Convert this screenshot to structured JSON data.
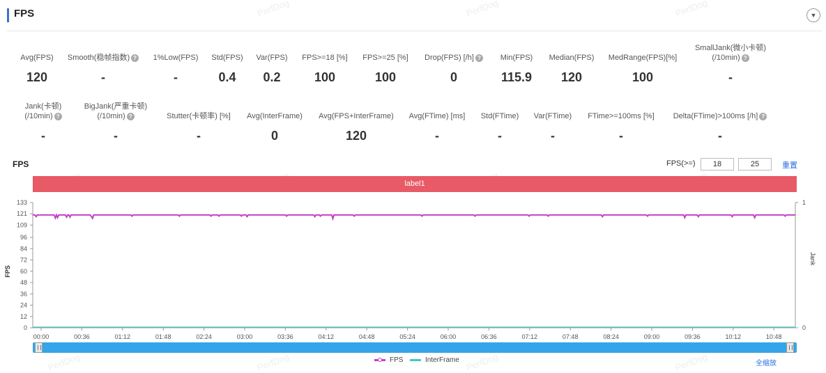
{
  "header": {
    "title": "FPS"
  },
  "metrics_row1": [
    {
      "label": "Avg(FPS)",
      "value": "120",
      "help": false
    },
    {
      "label": "Smooth(稳帧指数)",
      "value": "-",
      "help": true
    },
    {
      "label": "1%Low(FPS)",
      "value": "-",
      "help": false
    },
    {
      "label": "Std(FPS)",
      "value": "0.4",
      "help": false
    },
    {
      "label": "Var(FPS)",
      "value": "0.2",
      "help": false
    },
    {
      "label": "FPS>=18 [%]",
      "value": "100",
      "help": false
    },
    {
      "label": "FPS>=25 [%]",
      "value": "100",
      "help": false
    },
    {
      "label": "Drop(FPS) [/h]",
      "value": "0",
      "help": true
    },
    {
      "label": "Min(FPS)",
      "value": "115.9",
      "help": false
    },
    {
      "label": "Median(FPS)",
      "value": "120",
      "help": false
    },
    {
      "label": "MedRange(FPS)[%]",
      "value": "100",
      "help": false
    },
    {
      "label": "SmallJank(微小卡顿)",
      "label2": "(/10min)",
      "value": "-",
      "help": true
    }
  ],
  "metrics_row2": [
    {
      "label": "Jank(卡顿)",
      "label2": "(/10min)",
      "value": "-",
      "help": true
    },
    {
      "label": "BigJank(严重卡顿)",
      "label2": "(/10min)",
      "value": "-",
      "help": true
    },
    {
      "label": "Stutter(卡顿率) [%]",
      "value": "-",
      "help": false
    },
    {
      "label": "Avg(InterFrame)",
      "value": "0",
      "help": false
    },
    {
      "label": "Avg(FPS+InterFrame)",
      "value": "120",
      "help": false
    },
    {
      "label": "Avg(FTime) [ms]",
      "value": "-",
      "help": false
    },
    {
      "label": "Std(FTime)",
      "value": "-",
      "help": false
    },
    {
      "label": "Var(FTime)",
      "value": "-",
      "help": false
    },
    {
      "label": "FTime>=100ms [%]",
      "value": "-",
      "help": false
    },
    {
      "label": "Delta(FTime)>100ms [/h]",
      "value": "-",
      "help": true
    }
  ],
  "chart_section": {
    "title": "FPS",
    "threshold_label": "FPS(>=)",
    "threshold1": "18",
    "threshold2": "25",
    "reset_label": "重置",
    "label_bar": "label1",
    "zoom_out_label": "全缩放",
    "watermark": "PerfDog"
  },
  "chart_data": {
    "type": "line",
    "ylabel": "FPS",
    "ylabel_right": "Jank",
    "y_ticks": [
      0,
      12,
      24,
      36,
      48,
      60,
      72,
      84,
      96,
      109,
      121,
      133
    ],
    "ylim": [
      0,
      133
    ],
    "y_right_ticks": [
      "0",
      "1"
    ],
    "x_ticks": [
      "00:00",
      "00:36",
      "01:12",
      "01:48",
      "02:24",
      "03:00",
      "03:36",
      "04:12",
      "04:48",
      "05:24",
      "06:00",
      "06:36",
      "07:12",
      "07:48",
      "08:24",
      "09:00",
      "09:36",
      "10:12",
      "10:48"
    ],
    "x_range_seconds": [
      0,
      676
    ],
    "series": [
      {
        "name": "FPS",
        "color": "#c541c5",
        "baseline": 119.8,
        "dips": [
          [
            3,
            118
          ],
          [
            20,
            116.5
          ],
          [
            22,
            117
          ],
          [
            30,
            117.5
          ],
          [
            33,
            117.5
          ],
          [
            52,
            118
          ],
          [
            53,
            116.2
          ],
          [
            88,
            118.5
          ],
          [
            130,
            118.5
          ],
          [
            158,
            118.5
          ],
          [
            165,
            118.5
          ],
          [
            185,
            118.5
          ],
          [
            190,
            118
          ],
          [
            225,
            118.5
          ],
          [
            250,
            118
          ],
          [
            255,
            118.5
          ],
          [
            266,
            115.9
          ],
          [
            285,
            118.5
          ],
          [
            345,
            118.5
          ],
          [
            392,
            118.5
          ],
          [
            440,
            118.5
          ],
          [
            457,
            118.5
          ],
          [
            505,
            118
          ],
          [
            545,
            118.5
          ],
          [
            578,
            117
          ],
          [
            590,
            118
          ],
          [
            620,
            118
          ],
          [
            640,
            117
          ],
          [
            667,
            118.5
          ]
        ]
      },
      {
        "name": "InterFrame",
        "color": "#3fc9c9",
        "values_all": 0
      }
    ],
    "legend_position": "bottom"
  }
}
